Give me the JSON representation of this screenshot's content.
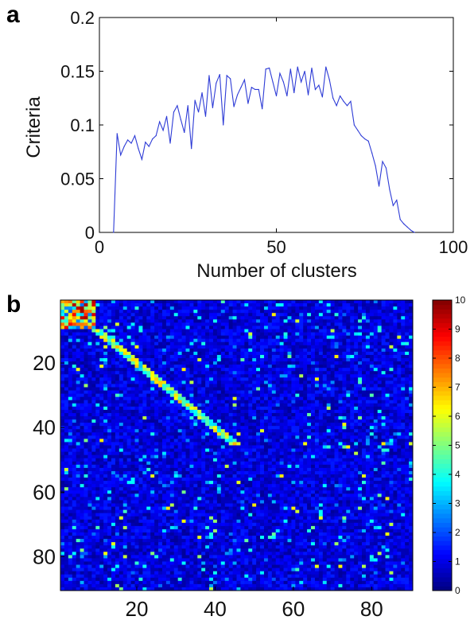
{
  "panels": {
    "a": "a",
    "b": "b"
  },
  "chart_data": [
    {
      "type": "line",
      "panel": "a",
      "xlabel": "Number of clusters",
      "ylabel": "Criteria",
      "xlim": [
        0,
        100
      ],
      "ylim": [
        0,
        0.2
      ],
      "xticks": [
        "0",
        "50",
        "100"
      ],
      "yticks": [
        "0",
        "0.05",
        "0.1",
        "0.15",
        "0.2"
      ],
      "grid": false,
      "color": "#2d3bd6",
      "x": [
        4,
        5,
        6,
        7,
        8,
        9,
        10,
        11,
        12,
        13,
        14,
        15,
        16,
        17,
        18,
        19,
        20,
        21,
        22,
        23,
        24,
        25,
        26,
        27,
        28,
        29,
        30,
        31,
        32,
        33,
        34,
        35,
        36,
        37,
        38,
        39,
        40,
        41,
        42,
        43,
        44,
        45,
        46,
        47,
        48,
        49,
        50,
        51,
        52,
        53,
        54,
        55,
        56,
        57,
        58,
        59,
        60,
        61,
        62,
        63,
        64,
        65,
        66,
        67,
        68,
        69,
        70,
        71,
        72,
        73,
        74,
        75,
        76,
        77,
        78,
        79,
        80,
        81,
        82,
        83,
        84,
        85,
        86,
        87,
        88,
        89
      ],
      "y": [
        0.0,
        0.092,
        0.072,
        0.08,
        0.086,
        0.083,
        0.09,
        0.078,
        0.068,
        0.084,
        0.08,
        0.087,
        0.09,
        0.103,
        0.095,
        0.108,
        0.083,
        0.112,
        0.118,
        0.105,
        0.093,
        0.118,
        0.078,
        0.123,
        0.112,
        0.13,
        0.108,
        0.146,
        0.116,
        0.139,
        0.147,
        0.1,
        0.146,
        0.143,
        0.117,
        0.128,
        0.135,
        0.142,
        0.12,
        0.135,
        0.133,
        0.133,
        0.115,
        0.152,
        0.153,
        0.14,
        0.127,
        0.148,
        0.14,
        0.127,
        0.152,
        0.13,
        0.154,
        0.14,
        0.15,
        0.128,
        0.153,
        0.133,
        0.137,
        0.126,
        0.154,
        0.142,
        0.125,
        0.118,
        0.127,
        0.122,
        0.118,
        0.122,
        0.1,
        0.095,
        0.09,
        0.087,
        0.085,
        0.074,
        0.062,
        0.043,
        0.066,
        0.06,
        0.04,
        0.025,
        0.03,
        0.012,
        0.008,
        0.005,
        0.002,
        0.0
      ]
    },
    {
      "type": "heatmap",
      "panel": "b",
      "rows": 90,
      "cols": 90,
      "xticks": [
        "20",
        "40",
        "60",
        "80"
      ],
      "yticks": [
        "20",
        "40",
        "60",
        "80"
      ],
      "colormap": "jet",
      "clim": [
        0,
        10
      ],
      "colorbar_ticks": [
        "0",
        "1",
        "2",
        "3",
        "4",
        "5",
        "6",
        "7",
        "8",
        "9",
        "10"
      ]
    }
  ]
}
